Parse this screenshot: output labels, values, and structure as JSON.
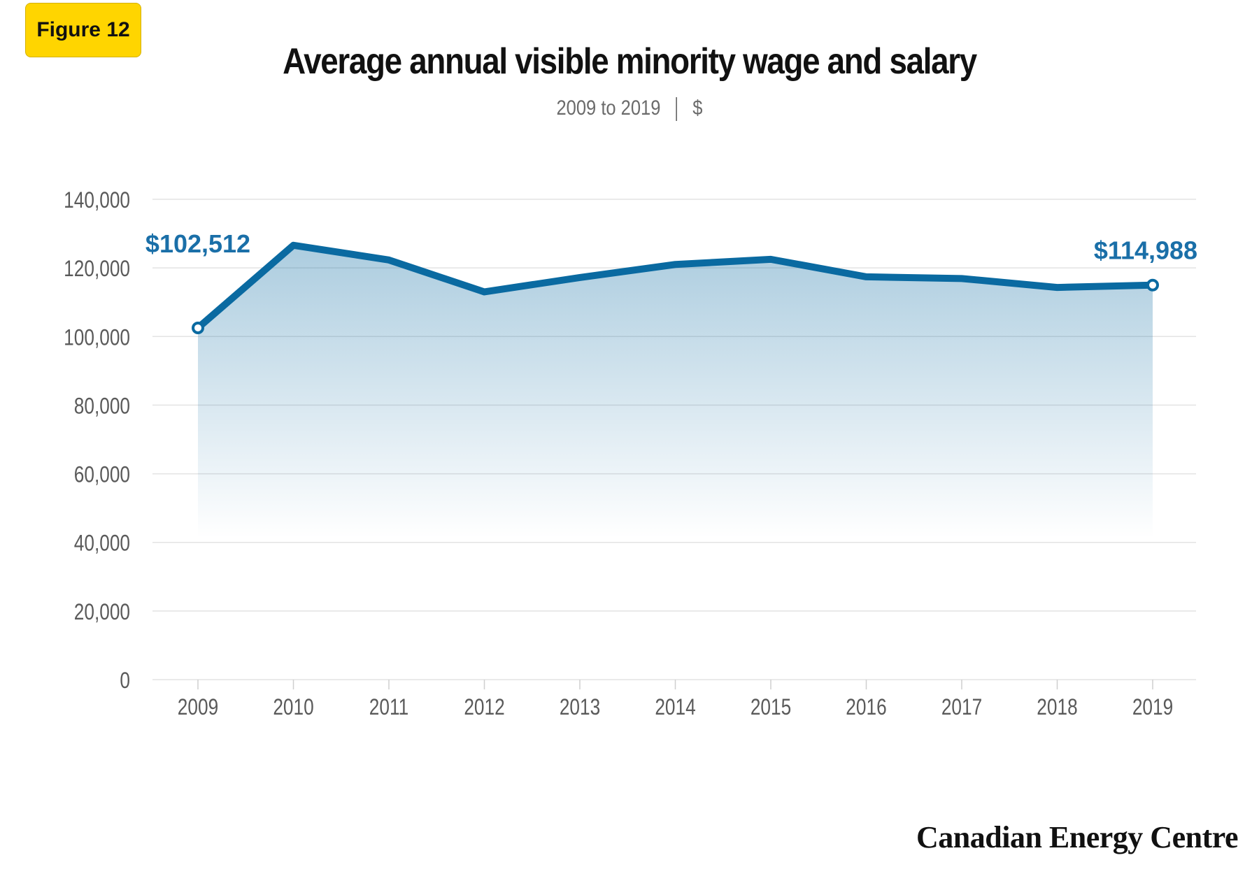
{
  "figure_label": "Figure 12",
  "title": "Average annual visible minority wage and salary",
  "subtitle": {
    "range": "2009 to 2019",
    "unit": "$"
  },
  "brand": "Canadian Energy Centre",
  "colors": {
    "line": "#0a6aa1",
    "label": "#1a6fa8",
    "axis_text": "#5a5a5a",
    "grid": "#e3e3e3",
    "badge": "#ffd500"
  },
  "chart_data": {
    "type": "area",
    "x": [
      "2009",
      "2010",
      "2011",
      "2012",
      "2013",
      "2014",
      "2015",
      "2016",
      "2017",
      "2018",
      "2019"
    ],
    "values": [
      102512,
      126600,
      122300,
      113000,
      117200,
      121000,
      122500,
      117400,
      116900,
      114300,
      114988
    ],
    "ylim": [
      0,
      140000
    ],
    "yticks": [
      0,
      20000,
      40000,
      60000,
      80000,
      100000,
      120000,
      140000
    ],
    "ytick_labels": [
      "0",
      "20,000",
      "40,000",
      "60,000",
      "80,000",
      "100,000",
      "120,000",
      "140,000"
    ],
    "grid": true,
    "annotations": [
      {
        "x": "2009",
        "text": "$102,512"
      },
      {
        "x": "2019",
        "text": "$114,988"
      }
    ]
  }
}
